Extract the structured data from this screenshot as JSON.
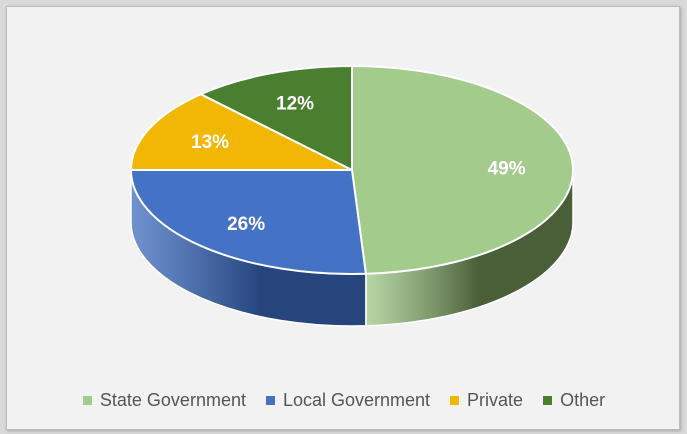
{
  "chart_data": {
    "type": "pie",
    "title": "",
    "slices": [
      {
        "name": "State Government",
        "value": 49,
        "label": "49%",
        "color": "#a3cc8c",
        "side_color": "#4a5e38"
      },
      {
        "name": "Local Government",
        "value": 26,
        "label": "26%",
        "color": "#4472c4",
        "side_color": "#26457d"
      },
      {
        "name": "Private",
        "value": 13,
        "label": "13%",
        "color": "#f2b705",
        "side_color": "#8c6a00"
      },
      {
        "name": "Other",
        "value": 12,
        "label": "12%",
        "color": "#4b7f30",
        "side_color": "#2c4a1c"
      }
    ],
    "legend_position": "bottom"
  }
}
